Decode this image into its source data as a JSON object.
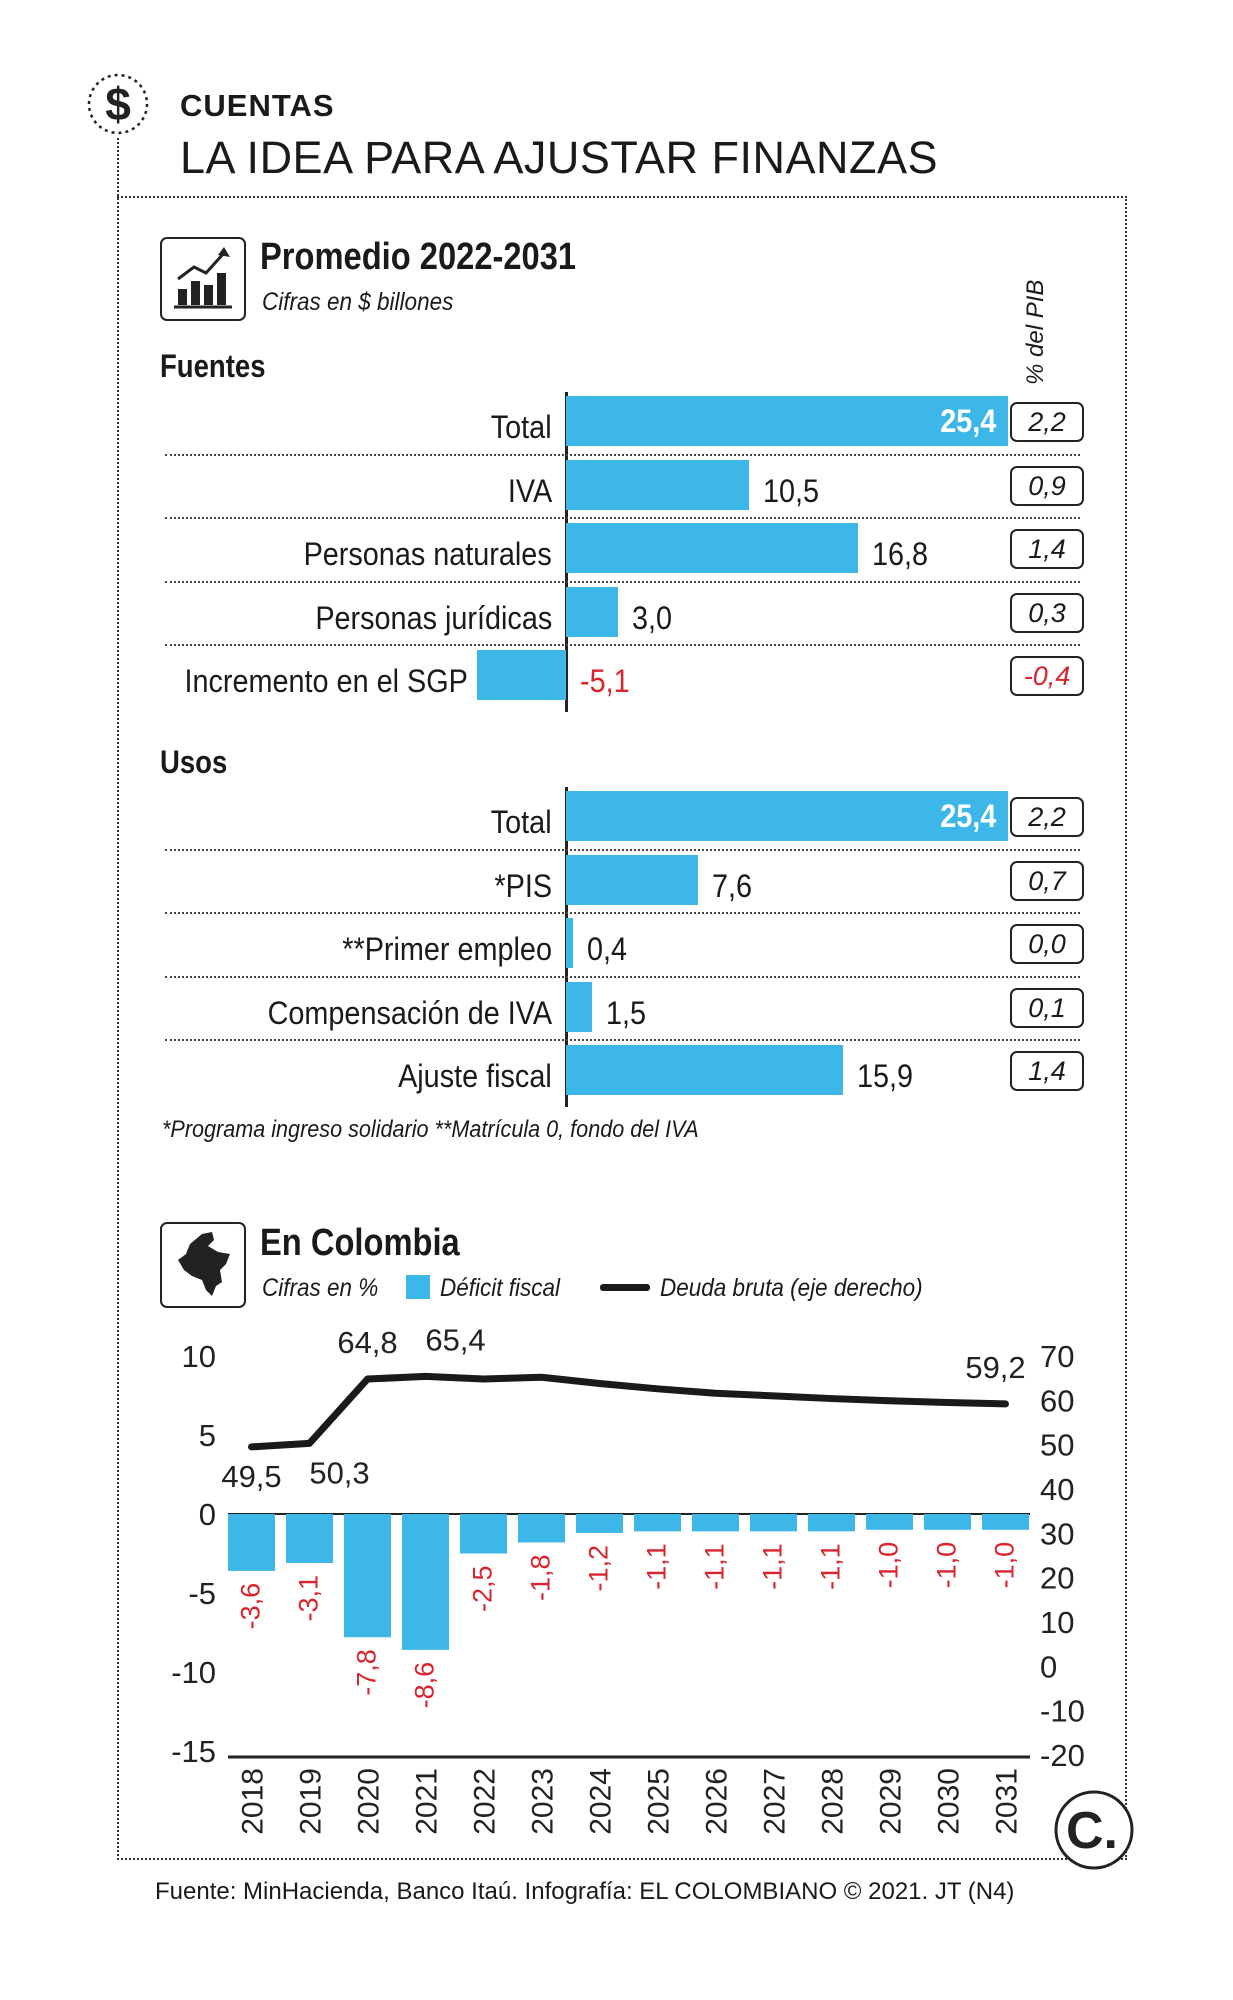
{
  "header": {
    "kicker": "CUENTAS",
    "title": "LA IDEA PARA AJUSTAR FINANZAS",
    "icon": "dollar-sign-icon"
  },
  "section1": {
    "title": "Promedio 2022-2031",
    "subtitle": "Cifras en $ billones",
    "pib_header": "% del PIB",
    "icon": "growth-chart-icon"
  },
  "section2": {
    "title": "En Colombia",
    "subtitle": "Cifras en %",
    "legend_deficit": "Déficit fiscal",
    "legend_deuda": "Deuda bruta (eje derecho)",
    "icon": "colombia-map-icon"
  },
  "footnote": "*Programa ingreso solidario   **Matrícula 0, fondo del IVA",
  "source": "Fuente: MinHacienda, Banco Itaú. Infografía: EL COLOMBIANO © 2021. JT (N4)",
  "logo": "C.",
  "colors": {
    "bar": "#3db7e8",
    "negative": "#d9232d",
    "line": "#1a1a1a"
  },
  "chart_data": [
    {
      "type": "bar",
      "group": "Fuentes",
      "categories": [
        "Total",
        "IVA",
        "Personas naturales",
        "Personas jurídicas",
        "Incremento en el SGP"
      ],
      "values": [
        25.4,
        10.5,
        16.8,
        3.0,
        -5.1
      ],
      "value_labels": [
        "25,4",
        "10,5",
        "16,8",
        "3,0",
        "-5,1"
      ],
      "pct_pib": [
        "2,2",
        "0,9",
        "1,4",
        "0,3",
        "-0,4"
      ]
    },
    {
      "type": "bar",
      "group": "Usos",
      "categories": [
        "Total",
        "*PIS",
        "**Primer empleo",
        "Compensación de IVA",
        "Ajuste fiscal"
      ],
      "values": [
        25.4,
        7.6,
        0.4,
        1.5,
        15.9
      ],
      "value_labels": [
        "25,4",
        "7,6",
        "0,4",
        "1,5",
        "15,9"
      ],
      "pct_pib": [
        "2,2",
        "0,7",
        "0,0",
        "0,1",
        "1,4"
      ]
    },
    {
      "type": "bar+line",
      "x": [
        "2018",
        "2019",
        "2020",
        "2021",
        "2022",
        "2023",
        "2024",
        "2025",
        "2026",
        "2027",
        "2028",
        "2029",
        "2030",
        "2031"
      ],
      "series": [
        {
          "name": "Déficit fiscal",
          "axis": "left",
          "values": [
            -3.6,
            -3.1,
            -7.8,
            -8.6,
            -2.5,
            -1.8,
            -1.2,
            -1.1,
            -1.1,
            -1.1,
            -1.1,
            -1.0,
            -1.0,
            -1.0
          ],
          "labels": [
            "-3,6",
            "-3,1",
            "-7,8",
            "-8,6",
            "-2,5",
            "-1,8",
            "-1,2",
            "-1,1",
            "-1,1",
            "-1,1",
            "-1,1",
            "-1,0",
            "-1,0",
            "-1,0"
          ]
        },
        {
          "name": "Deuda bruta (eje derecho)",
          "axis": "right",
          "values": [
            49.5,
            50.3,
            64.8,
            65.4,
            64.8,
            65.2,
            63.8,
            62.6,
            61.6,
            61.0,
            60.4,
            59.9,
            59.5,
            59.2
          ],
          "labels": {
            "0": "49,5",
            "1": "50,3",
            "2": "64,8",
            "3": "65,4",
            "13": "59,2"
          }
        }
      ],
      "ylim_left": [
        -15,
        10
      ],
      "yticks_left": [
        "10",
        "5",
        "0",
        "-5",
        "-10",
        "-15"
      ],
      "ylim_right": [
        -20,
        70
      ],
      "yticks_right": [
        "70",
        "60",
        "50",
        "40",
        "30",
        "20",
        "10",
        "0",
        "-10",
        "-20"
      ]
    }
  ]
}
